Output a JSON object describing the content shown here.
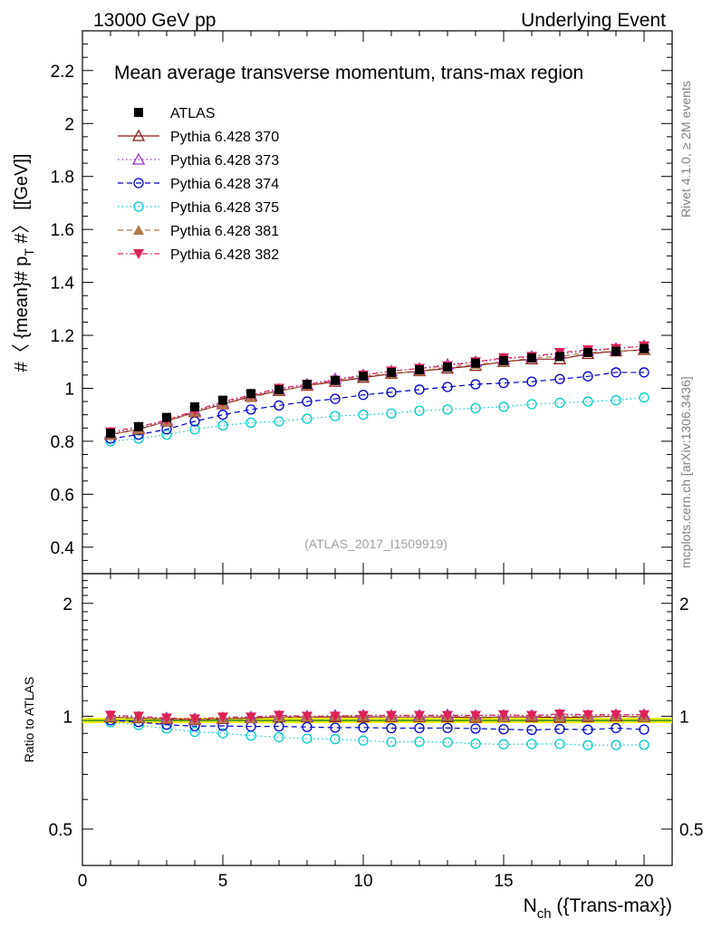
{
  "header": {
    "left": "13000 GeV pp",
    "right": "Underlying Event"
  },
  "side_labels": {
    "rivet": "Rivet 4.1.0, ≥ 2M events",
    "mcplots": "mcplots.cern.ch [arXiv:1306.3436]"
  },
  "chart_data": {
    "type": "scatter",
    "title": "Mean average transverse momentum, trans-max region",
    "watermark": "(ATLAS_2017_I1509919)",
    "ylabel": "#〈 {mean}# p_T #〉 [[GeV]]",
    "ylabel_main": "#〈 {mean}# p",
    "ylabel_sub": "T",
    "ylabel_tail": " #〉 [[GeV]]",
    "xlabel": "N_ch ({Trans-max})",
    "xlabel_main": "N",
    "xlabel_sub": "ch",
    "xlabel_tail": " ({Trans-max})",
    "ratio_ylabel": "Ratio to ATLAS",
    "xlim": [
      0,
      21
    ],
    "ylim": [
      0.3,
      2.35
    ],
    "ratio_ylim": [
      0.4,
      2.4
    ],
    "x_ticks": [
      "0",
      "5",
      "10",
      "15",
      "20"
    ],
    "y_ticks": [
      "0.4",
      "0.6",
      "0.8",
      "1",
      "1.2",
      "1.4",
      "1.6",
      "1.8",
      "2",
      "2.2"
    ],
    "ratio_ticks": [
      "0.5",
      "1",
      "2"
    ],
    "x": [
      1,
      2,
      3,
      4,
      5,
      6,
      7,
      8,
      9,
      10,
      11,
      12,
      13,
      14,
      15,
      16,
      17,
      18,
      19,
      20
    ],
    "series": [
      {
        "name": "ATLAS",
        "color": "#000000",
        "marker": "square",
        "line": "none",
        "values": [
          0.83,
          0.855,
          0.89,
          0.93,
          0.955,
          0.98,
          0.995,
          1.015,
          1.03,
          1.045,
          1.06,
          1.07,
          1.08,
          1.095,
          1.105,
          1.115,
          1.12,
          1.135,
          1.14,
          1.15
        ]
      },
      {
        "name": "Pythia 6.428 370",
        "color": "#8b1a1a",
        "marker": "triangle-open",
        "line": "solid",
        "values": [
          0.825,
          0.845,
          0.875,
          0.91,
          0.94,
          0.97,
          0.99,
          1.01,
          1.025,
          1.04,
          1.055,
          1.065,
          1.075,
          1.085,
          1.1,
          1.11,
          1.11,
          1.13,
          1.14,
          1.145
        ]
      },
      {
        "name": "Pythia 6.428 373",
        "color": "#9933cc",
        "marker": "triangle-open",
        "line": "dotted",
        "values": [
          0.83,
          0.85,
          0.88,
          0.915,
          0.945,
          0.975,
          0.995,
          1.015,
          1.035,
          1.05,
          1.065,
          1.075,
          1.09,
          1.1,
          1.11,
          1.12,
          1.13,
          1.14,
          1.15,
          1.16
        ]
      },
      {
        "name": "Pythia 6.428 374",
        "color": "#0000cc",
        "marker": "circle-open",
        "line": "dashed",
        "values": [
          0.81,
          0.825,
          0.845,
          0.875,
          0.9,
          0.92,
          0.935,
          0.95,
          0.96,
          0.975,
          0.985,
          0.995,
          1.005,
          1.015,
          1.02,
          1.025,
          1.035,
          1.045,
          1.06,
          1.06
        ]
      },
      {
        "name": "Pythia 6.428 375",
        "color": "#00cccc",
        "marker": "circle-open",
        "line": "dotted",
        "values": [
          0.8,
          0.81,
          0.825,
          0.845,
          0.86,
          0.87,
          0.875,
          0.885,
          0.895,
          0.9,
          0.905,
          0.915,
          0.92,
          0.925,
          0.93,
          0.94,
          0.945,
          0.95,
          0.955,
          0.965
        ]
      },
      {
        "name": "Pythia 6.428 381",
        "color": "#b07a4a",
        "marker": "triangle",
        "line": "dashed",
        "values": [
          0.825,
          0.845,
          0.875,
          0.91,
          0.94,
          0.965,
          0.99,
          1.01,
          1.03,
          1.045,
          1.055,
          1.065,
          1.08,
          1.09,
          1.1,
          1.115,
          1.12,
          1.135,
          1.14,
          1.145
        ]
      },
      {
        "name": "Pythia 6.428 382",
        "color": "#dd2255",
        "marker": "triangle-down",
        "line": "dashdot",
        "values": [
          0.835,
          0.855,
          0.88,
          0.915,
          0.95,
          0.975,
          1.0,
          1.015,
          1.03,
          1.05,
          1.065,
          1.075,
          1.085,
          1.1,
          1.115,
          1.12,
          1.135,
          1.145,
          1.15,
          1.16
        ]
      }
    ]
  }
}
